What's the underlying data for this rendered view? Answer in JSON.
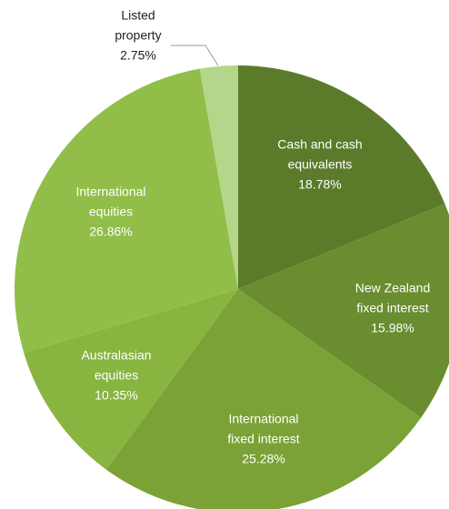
{
  "chart_data": {
    "type": "pie",
    "categories": [
      [
        "Cash and cash",
        "equivalents"
      ],
      [
        "New Zealand",
        "fixed interest"
      ],
      [
        "International",
        "fixed interest"
      ],
      [
        "Australasian",
        "equities"
      ],
      [
        "International",
        "equities"
      ],
      [
        "Listed",
        "property"
      ]
    ],
    "values": [
      18.78,
      15.98,
      25.28,
      10.35,
      26.86,
      2.75
    ],
    "value_labels": [
      "18.78%",
      "15.98%",
      "25.28%",
      "10.35%",
      "26.86%",
      "2.75%"
    ],
    "colors": [
      "#5b7b2b",
      "#6a8d2f",
      "#7aa236",
      "#88b440",
      "#91be48",
      "#b4d68a"
    ]
  }
}
